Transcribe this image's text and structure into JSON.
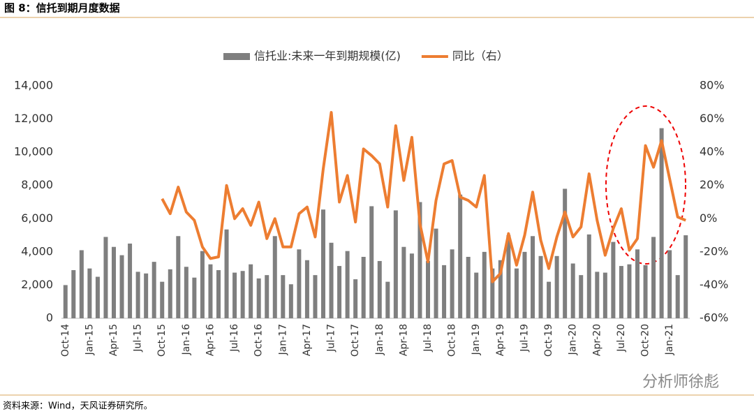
{
  "header": {
    "title": "图 8：信托到期月度数据"
  },
  "chart_data": {
    "type": "bar-line",
    "categories": [
      "Oct-14",
      null,
      null,
      "Jan-15",
      null,
      null,
      "Apr-15",
      null,
      null,
      "Jul-15",
      null,
      null,
      "Oct-15",
      null,
      null,
      "Jan-16",
      null,
      null,
      "Apr-16",
      null,
      null,
      "Jul-16",
      null,
      null,
      "Oct-16",
      null,
      null,
      "Jan-17",
      null,
      null,
      "Apr-17",
      null,
      null,
      "Jul-17",
      null,
      null,
      "Oct-17",
      null,
      null,
      "Jan-18",
      null,
      null,
      "Apr-18",
      null,
      null,
      "Jul-18",
      null,
      null,
      "Oct-18",
      null,
      null,
      "Jan-19",
      null,
      null,
      "Apr-19",
      null,
      null,
      "Jul-19",
      null,
      null,
      "Oct-19",
      null,
      null,
      "Jan-20",
      null,
      null,
      "Apr-20",
      null,
      null,
      "Jul-20",
      null,
      null,
      "Oct-20",
      null,
      null,
      "Jan-21",
      null,
      null
    ],
    "series": [
      {
        "name": "信托业:未来一年到期规模(亿)",
        "color": "#7f7f7f",
        "kind": "bar",
        "values": [
          2000,
          2900,
          4100,
          3000,
          2500,
          4900,
          4300,
          3800,
          4500,
          2800,
          2700,
          3400,
          2200,
          2950,
          4950,
          3100,
          2450,
          4050,
          3250,
          2900,
          5350,
          2750,
          2850,
          3250,
          2400,
          2600,
          4950,
          2600,
          2050,
          4150,
          3500,
          2600,
          6550,
          4550,
          3150,
          4050,
          2350,
          3700,
          6750,
          3450,
          2200,
          6500,
          4300,
          3900,
          7000,
          3450,
          5400,
          3200,
          4150,
          7450,
          3700,
          2750,
          4000,
          3000,
          3500,
          5000,
          3000,
          4000,
          4950,
          3750,
          2200,
          3750,
          7800,
          3300,
          2600,
          5050,
          2800,
          2750,
          4600,
          3150,
          3250,
          4150,
          3200,
          4900,
          11450,
          4100,
          2600,
          5000
        ]
      },
      {
        "name": "同比（右）",
        "color": "#ed7d31",
        "kind": "line",
        "axis": "y2",
        "values": [
          null,
          null,
          null,
          null,
          null,
          null,
          null,
          null,
          null,
          null,
          null,
          null,
          12,
          3,
          19,
          4,
          -1,
          -17,
          -24,
          -23,
          20,
          0,
          6,
          -4,
          10,
          -12,
          0,
          -17,
          -17,
          3,
          7,
          -11,
          30,
          64,
          10,
          26,
          -2,
          42,
          38,
          33,
          7,
          56,
          23,
          49,
          -3,
          -26,
          11,
          33,
          35,
          13,
          11,
          7,
          26,
          -38,
          -33,
          -9,
          -28,
          -10,
          16,
          -13,
          -30,
          -11,
          4,
          -11,
          -5,
          27,
          -1,
          -22,
          -6,
          6,
          -19,
          -12,
          44,
          31,
          47,
          24,
          1,
          -1
        ]
      }
    ],
    "ylim": [
      0,
      14000
    ],
    "yticks": [
      0,
      {
        "value": 2000,
        "label": "2,000"
      },
      {
        "value": 4000,
        "label": "4,000"
      },
      {
        "value": 6000,
        "label": "6,000"
      },
      {
        "value": 8000,
        "label": "8,000"
      },
      {
        "value": 10000,
        "label": "10,000"
      },
      {
        "value": 12000,
        "label": "12,000"
      },
      {
        "value": 14000,
        "label": "14,000"
      }
    ],
    "y2lim": [
      -60,
      80
    ],
    "y2ticks": [
      {
        "value": -60,
        "label": "-60%"
      },
      {
        "value": -40,
        "label": "-40%"
      },
      {
        "value": -20,
        "label": "-20%"
      },
      {
        "value": 0,
        "label": "0%"
      },
      {
        "value": 20,
        "label": "20%"
      },
      {
        "value": 40,
        "label": "40%"
      },
      {
        "value": 60,
        "label": "60%"
      },
      {
        "value": 80,
        "label": "80%"
      }
    ],
    "legend": "top",
    "watermark": "分析师徐彪"
  },
  "footer": {
    "source": "资料来源：Wind，天风证券研究所。"
  }
}
